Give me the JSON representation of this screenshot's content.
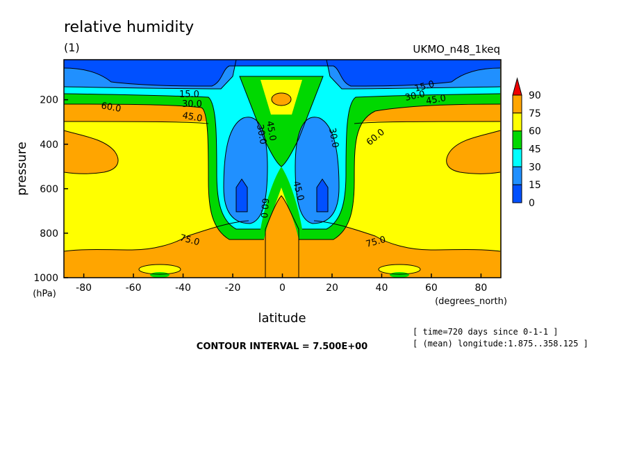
{
  "chart_data": {
    "type": "contour",
    "title": "relative humidity",
    "subtitle": "(1)",
    "model_label": "UKMO_n48_1keq",
    "xlabel": "latitude",
    "xunits": "(degrees_north)",
    "ylabel": "pressure",
    "yunits": "(hPa)",
    "xlim": [
      -88,
      88
    ],
    "ylim": [
      1000,
      20
    ],
    "y_inverted": true,
    "xticks": [
      -80,
      -60,
      -40,
      -20,
      0,
      20,
      40,
      60,
      80
    ],
    "yticks": [
      200,
      400,
      600,
      800,
      1000
    ],
    "colorbar": {
      "levels": [
        "90",
        "75",
        "60",
        "45",
        "30",
        "15",
        "0"
      ],
      "colors": [
        "#e8e8e8",
        "#ff0000",
        "#ffa500",
        "#ffff00",
        "#00cc00",
        "#00ffff",
        "#1e90ff",
        "#0050f0"
      ],
      "triangle_color": "#ee0000",
      "band_colors": [
        "#ffa500",
        "#ffff00",
        "#00d800",
        "#00ffff",
        "#2090ff",
        "#0050ff"
      ]
    },
    "contour_labels": [
      "15.0",
      "30.0",
      "45.0",
      "60.0",
      "75.0"
    ],
    "contour_interval": "CONTOUR INTERVAL = 7.500E+00",
    "info_lines": [
      "[ time=720 days since 0-1-1 ]",
      "[ (mean) longitude:1.875..358.125 ]"
    ]
  },
  "colors": {
    "orange": "#ffa500",
    "yellow": "#ffff00",
    "green": "#00d800",
    "cyan": "#00ffff",
    "blue": "#2090ff",
    "darkblue": "#0050ff"
  }
}
